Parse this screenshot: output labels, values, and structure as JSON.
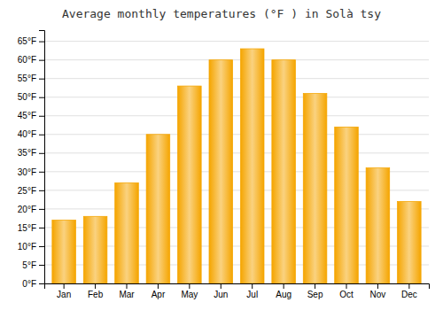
{
  "chart_data": {
    "type": "bar",
    "title": "Average monthly temperatures (°F ) in Solà tsy",
    "categories": [
      "Jan",
      "Feb",
      "Mar",
      "Apr",
      "May",
      "Jun",
      "Jul",
      "Aug",
      "Sep",
      "Oct",
      "Nov",
      "Dec"
    ],
    "values": [
      17,
      18,
      27,
      40,
      53,
      60,
      63,
      60,
      51,
      42,
      31,
      22
    ],
    "color": "#F5A500",
    "ylim": [
      0,
      68
    ],
    "yticks": [
      {
        "value": 0,
        "label": "0°F"
      },
      {
        "value": 5,
        "label": "5°F"
      },
      {
        "value": 10,
        "label": "10°F"
      },
      {
        "value": 15,
        "label": "15°F"
      },
      {
        "value": 20,
        "label": "20°F"
      },
      {
        "value": 25,
        "label": "25°F"
      },
      {
        "value": 30,
        "label": "30°F"
      },
      {
        "value": 35,
        "label": "35°F"
      },
      {
        "value": 40,
        "label": "40°F"
      },
      {
        "value": 45,
        "label": "45°F"
      },
      {
        "value": 50,
        "label": "50°F"
      },
      {
        "value": 55,
        "label": "55°F"
      },
      {
        "value": 60,
        "label": "60°F"
      },
      {
        "value": 65,
        "label": "65°F"
      }
    ],
    "grid": true
  }
}
